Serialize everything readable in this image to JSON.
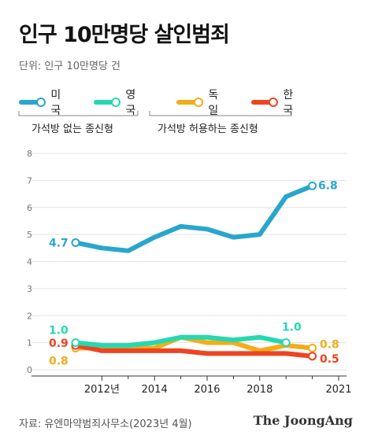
{
  "title": "인구 10만명당 살인범죄",
  "unit": "단위: 인구 10만명당 건",
  "legend": [
    {
      "name": "미국",
      "color": "#2aa6cc"
    },
    {
      "name": "영국",
      "color": "#26d8b0"
    },
    {
      "name": "독일",
      "color": "#f2ad1a"
    },
    {
      "name": "한국",
      "color": "#ee4420"
    }
  ],
  "groups": {
    "left": "가석방 없는 종신형",
    "right": "가석방 허용하는 종신형"
  },
  "source": "자료: 유엔마약범죄사무소(2023년 4월)",
  "brand": "The JoongAng",
  "chart_data": {
    "type": "line",
    "x": [
      2011,
      2012,
      2013,
      2014,
      2015,
      2016,
      2017,
      2018,
      2019,
      2020,
      2021
    ],
    "xticks": [
      {
        "x": 2012,
        "label": "2012년"
      },
      {
        "x": 2014,
        "label": "2014"
      },
      {
        "x": 2016,
        "label": "2016"
      },
      {
        "x": 2018,
        "label": "2018"
      },
      {
        "x": 2021,
        "label": "2021"
      }
    ],
    "yticks": [
      0,
      1,
      2,
      3,
      4,
      5,
      6,
      7,
      8
    ],
    "ylim": [
      0,
      8
    ],
    "grid": true,
    "series": [
      {
        "name": "미국",
        "color": "#2aa6cc",
        "values": [
          4.7,
          4.5,
          4.4,
          4.9,
          5.3,
          5.2,
          4.9,
          5.0,
          6.4,
          6.8,
          null
        ],
        "x": [
          2011,
          2012,
          2013,
          2014,
          2015,
          2016,
          2017,
          2018,
          2019,
          2020,
          2021
        ],
        "start_label": "4.7",
        "end_label": "6.8"
      },
      {
        "name": "영국",
        "color": "#26d8b0",
        "values": [
          1.0,
          0.9,
          0.9,
          1.0,
          1.2,
          1.2,
          1.1,
          1.2,
          1.0
        ],
        "x": [
          2011,
          2012,
          2013,
          2014,
          2015,
          2016,
          2017,
          2018,
          2019
        ],
        "start_label": "1.0",
        "end_label": "1.0"
      },
      {
        "name": "독일",
        "color": "#f2ad1a",
        "values": [
          0.8,
          0.8,
          0.8,
          0.8,
          1.2,
          1.0,
          1.0,
          0.7,
          0.9,
          0.8
        ],
        "x": [
          2011,
          2012,
          2013,
          2014,
          2015,
          2016,
          2017,
          2018,
          2019,
          2020
        ],
        "start_label": "0.8",
        "end_label": "0.8"
      },
      {
        "name": "한국",
        "color": "#ee4420",
        "values": [
          0.9,
          0.7,
          0.7,
          0.7,
          0.7,
          0.6,
          0.6,
          0.6,
          0.6,
          0.5
        ],
        "x": [
          2011,
          2012,
          2013,
          2014,
          2015,
          2016,
          2017,
          2018,
          2019,
          2020
        ],
        "start_label": "0.9",
        "end_label": "0.5"
      }
    ]
  }
}
